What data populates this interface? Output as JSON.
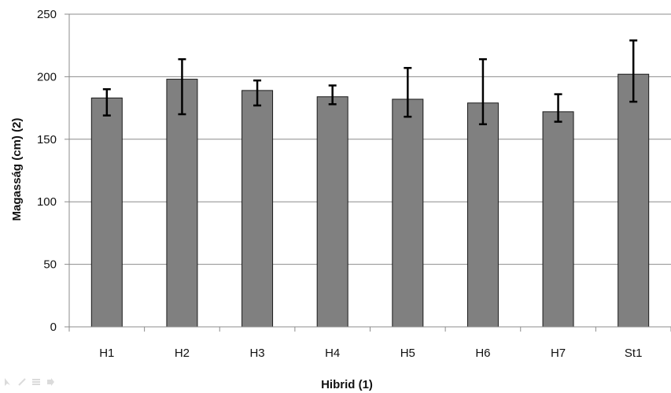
{
  "chart_data": {
    "type": "bar",
    "categories": [
      "H1",
      "H2",
      "H3",
      "H4",
      "H5",
      "H6",
      "H7",
      "St1"
    ],
    "series": [
      {
        "values": [
          183,
          198,
          189,
          184,
          182,
          179,
          172,
          202
        ],
        "error_low": [
          169,
          170,
          177,
          178,
          168,
          162,
          164,
          180
        ],
        "error_high": [
          190,
          214,
          197,
          193,
          207,
          214,
          186,
          229
        ],
        "color": "#808080"
      }
    ],
    "title": "",
    "xlabel": "Hibrid (1)",
    "ylabel": "Magasság  (cm) (2)",
    "ylim": [
      0,
      250
    ],
    "yticks": [
      0,
      50,
      100,
      150,
      200,
      250
    ],
    "grid": true,
    "legend": "none"
  },
  "toolbar": {
    "icons": [
      "cursor-icon",
      "pen-icon",
      "menu-icon",
      "next-icon"
    ]
  }
}
